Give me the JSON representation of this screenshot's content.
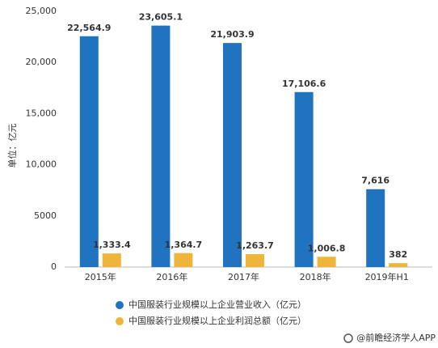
{
  "chart_data": {
    "type": "bar",
    "y_label": "单位：亿元",
    "categories": [
      "2015年",
      "2016年",
      "2017年",
      "2018年",
      "2019年H1"
    ],
    "series": [
      {
        "name": "中国服装行业规模以上企业营业收入（亿元）",
        "color": "#1f73bf",
        "values": [
          22564.9,
          23605.1,
          21903.9,
          17106.6,
          7616
        ],
        "value_labels": [
          "22,564.9",
          "23,605.1",
          "21,903.9",
          "17,106.6",
          "7,616"
        ]
      },
      {
        "name": "中国服装行业规模以上企业利润总额（亿元）",
        "color": "#efb43a",
        "values": [
          1333.4,
          1364.7,
          1263.7,
          1006.8,
          382
        ],
        "value_labels": [
          "1,333.4",
          "1,364.7",
          "1,263.7",
          "1,006.8",
          "382"
        ]
      }
    ],
    "ylim": [
      0,
      25000
    ],
    "yticks": [
      0,
      5000,
      {
        "value": 10000,
        "label": "10,000"
      },
      {
        "value": 15000,
        "label": "15,000"
      },
      {
        "value": 20000,
        "label": "20,000"
      },
      {
        "value": 25000,
        "label": "25,000"
      }
    ],
    "grid": false,
    "legend": "bottom",
    "source": "@前瞻经济学人APP"
  }
}
